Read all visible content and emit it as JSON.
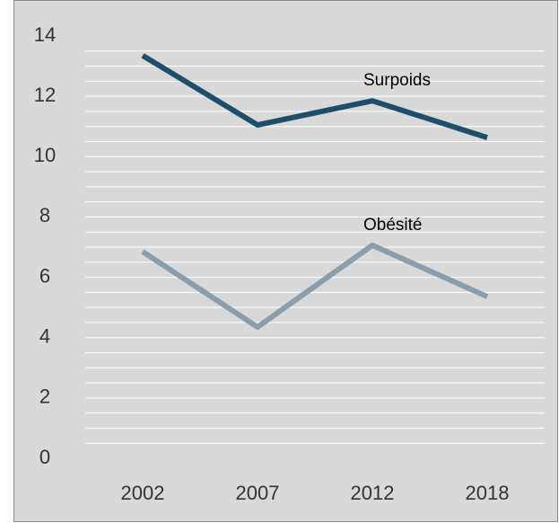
{
  "chart_data": {
    "type": "line",
    "categories": [
      "2002",
      "2007",
      "2012",
      "2018"
    ],
    "series": [
      {
        "name": "Surpoids",
        "color": "#1d4f6b",
        "values": [
          13.35,
          11.05,
          11.85,
          10.63
        ]
      },
      {
        "name": "Obésité",
        "color": "#8a9eae",
        "values": [
          6.85,
          4.35,
          7.06,
          5.36
        ]
      }
    ],
    "ylim": [
      0,
      14
    ],
    "yticks": [
      0,
      2,
      4,
      6,
      8,
      10,
      12,
      14
    ],
    "minor_yticks": [
      0.5,
      1,
      1.5,
      2,
      2.5,
      3,
      3.5,
      4,
      4.5,
      5,
      5.5,
      6,
      6.5,
      7,
      7.5,
      8,
      8.5,
      9,
      9.5,
      10,
      10.5,
      11,
      11.5,
      12,
      12.5,
      13,
      13.5
    ],
    "grid": true
  }
}
